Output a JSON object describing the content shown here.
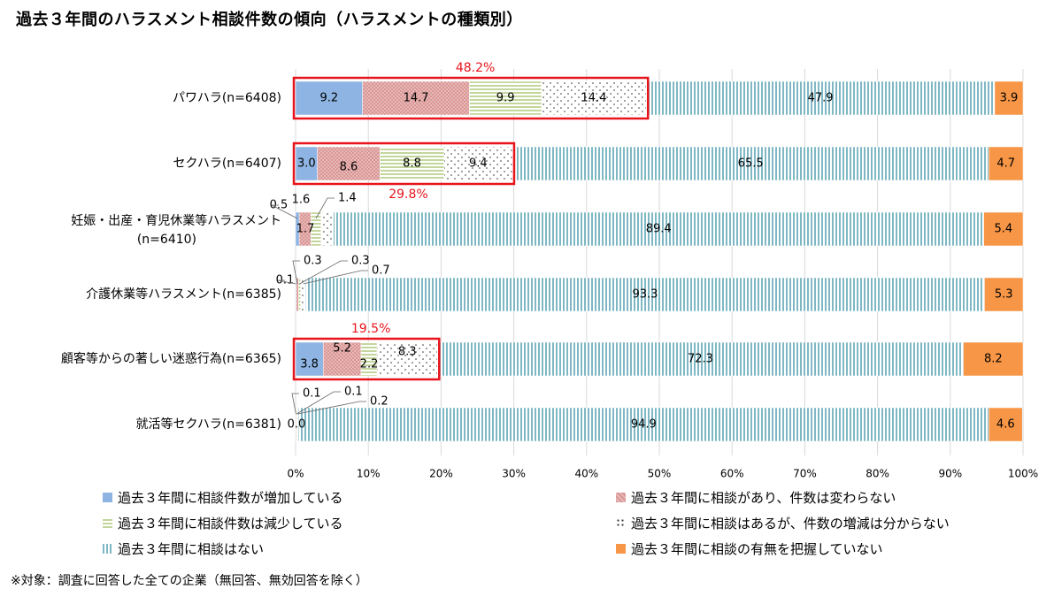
{
  "page": {
    "title": "過去３年間のハラスメント相談件数の傾向（ハラスメントの種類別）",
    "footnote": "※対象：調査に回答した全ての企業（無回答、無効回答を除く）"
  },
  "colors": {
    "increase": "#8EB4E3",
    "nochange": "#D99694",
    "decrease": "#C3D69B",
    "unknown": "#FFFFFF",
    "none": "#7FB8C4",
    "notgrasped": "#F79646",
    "highlight": "#E8141C",
    "grid": "#D9D9D9"
  },
  "chart_data": {
    "type": "bar",
    "orientation": "horizontal",
    "stacked": true,
    "categories": [
      "パワハラ(n=6408)",
      "セクハラ(n=6407)",
      "妊娠・出産・育児休業等ハラスメント(n=6410)",
      "介護休業等ハラスメント(n=6385)",
      "顧客等からの著しい迷惑行為(n=6365)",
      "就活等セクハラ(n=6381)"
    ],
    "category_lines": [
      [
        "パワハラ(n=6408)"
      ],
      [
        "セクハラ(n=6407)"
      ],
      [
        "妊娠・出産・育児休業等ハラスメント",
        "(n=6410)"
      ],
      [
        "介護休業等ハラスメント(n=6385)"
      ],
      [
        "顧客等からの著しい迷惑行為(n=6365)"
      ],
      [
        "就活等セクハラ(n=6381)"
      ]
    ],
    "series": [
      {
        "name": "過去３年間に相談件数が増加している",
        "key": "increase",
        "values": [
          9.2,
          3.0,
          0.5,
          0.1,
          3.8,
          0.0
        ]
      },
      {
        "name": "過去３年間に相談があり、件数は変わらない",
        "key": "nochange",
        "values": [
          14.7,
          8.6,
          1.6,
          0.3,
          5.2,
          0.1
        ]
      },
      {
        "name": "過去３年間に相談件数は減少している",
        "key": "decrease",
        "values": [
          9.9,
          8.8,
          1.4,
          0.3,
          2.2,
          0.1
        ]
      },
      {
        "name": "過去３年間に相談はあるが、件数の増減は分からない",
        "key": "unknown",
        "values": [
          14.4,
          9.4,
          1.7,
          0.7,
          8.3,
          0.2
        ]
      },
      {
        "name": "過去３年間に相談はない",
        "key": "none",
        "values": [
          47.9,
          65.5,
          89.4,
          93.3,
          72.3,
          94.9
        ]
      },
      {
        "name": "過去３年間に相談の有無を把握していない",
        "key": "notgrasped",
        "values": [
          3.9,
          4.7,
          5.4,
          5.3,
          8.2,
          4.6
        ]
      }
    ],
    "value_labels": [
      [
        "9.2",
        "14.7",
        "9.9",
        "14.4",
        "47.9",
        "3.9"
      ],
      [
        "3.0",
        "8.6",
        "8.8",
        "9.4",
        "65.5",
        "4.7"
      ],
      [
        "0.5",
        "1.6",
        "1.4",
        "1.7",
        "89.4",
        "5.4"
      ],
      [
        "0.1",
        "0.3",
        "0.3",
        "0.7",
        "93.3",
        "5.3"
      ],
      [
        "3.8",
        "5.2",
        "2.2",
        "8.3",
        "72.3",
        "8.2"
      ],
      [
        "0.0",
        "0.1",
        "0.1",
        "0.2",
        "94.9",
        "4.6"
      ]
    ],
    "highlight_totals": [
      {
        "row": 0,
        "label": "48.2%",
        "value": 48.2,
        "place": "above"
      },
      {
        "row": 1,
        "label": "29.8%",
        "value": 29.8,
        "place": "below"
      },
      {
        "row": 4,
        "label": "19.5%",
        "value": 19.5,
        "place": "above"
      }
    ],
    "x_ticks": [
      "0%",
      "10%",
      "20%",
      "30%",
      "40%",
      "50%",
      "60%",
      "70%",
      "80%",
      "90%",
      "100%"
    ],
    "xlim": [
      0,
      100
    ],
    "grid": true,
    "legend_placement": "bottom"
  }
}
